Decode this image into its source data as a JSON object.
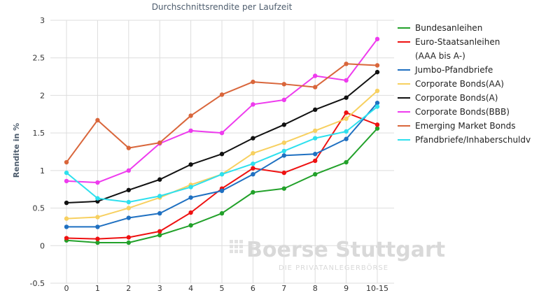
{
  "chart_data": {
    "type": "line",
    "title": "Durchschnittsrendite per Laufzeit",
    "ylabel": "Rendite in %",
    "xlabel": "",
    "categories": [
      "0",
      "1",
      "2",
      "3",
      "4",
      "5",
      "6",
      "7",
      "8",
      "9",
      "10-15"
    ],
    "ylim": [
      -0.5,
      3
    ],
    "yticks": [
      -0.5,
      0,
      0.5,
      1,
      1.5,
      2,
      2.5,
      3
    ],
    "grid": true,
    "legend_position": "right",
    "series": [
      {
        "name": "Bundesanleihen",
        "legend_lines": [
          "Bundesanleihen"
        ],
        "color": "#22a12a",
        "values": [
          0.07,
          0.04,
          0.04,
          0.14,
          0.27,
          0.43,
          0.71,
          0.76,
          0.95,
          1.11,
          1.56
        ]
      },
      {
        "name": "Euro-Staatsanleihen (AAA bis A-)",
        "legend_lines": [
          "Euro-Staatsanleihen",
          "(AAA bis A-)"
        ],
        "color": "#ee1111",
        "values": [
          0.1,
          0.09,
          0.11,
          0.19,
          0.44,
          0.76,
          1.03,
          0.97,
          1.13,
          1.77,
          1.61
        ]
      },
      {
        "name": "Jumbo-Pfandbriefe",
        "legend_lines": [
          "Jumbo-Pfandbriefe"
        ],
        "color": "#1f70c1",
        "values": [
          0.25,
          0.25,
          0.37,
          0.43,
          0.64,
          0.73,
          0.95,
          1.2,
          1.22,
          1.42,
          1.9
        ]
      },
      {
        "name": "Corporate Bonds(AA)",
        "legend_lines": [
          "Corporate Bonds(AA)"
        ],
        "color": "#f7d060",
        "values": [
          0.36,
          0.38,
          0.5,
          0.64,
          0.81,
          0.95,
          1.23,
          1.37,
          1.53,
          1.69,
          2.06
        ]
      },
      {
        "name": "Corporate Bonds(A)",
        "legend_lines": [
          "Corporate Bonds(A)"
        ],
        "color": "#111111",
        "values": [
          0.57,
          0.59,
          0.74,
          0.88,
          1.08,
          1.22,
          1.43,
          1.61,
          1.81,
          1.97,
          2.31
        ]
      },
      {
        "name": "Corporate Bonds(BBB)",
        "legend_lines": [
          "Corporate Bonds(BBB)"
        ],
        "color": "#ee3bee",
        "values": [
          0.86,
          0.84,
          1.0,
          1.36,
          1.53,
          1.5,
          1.88,
          1.94,
          2.26,
          2.2,
          2.75
        ]
      },
      {
        "name": "Emerging Market Bonds",
        "legend_lines": [
          "Emerging Market Bonds"
        ],
        "color": "#d9663b",
        "values": [
          1.11,
          1.67,
          1.3,
          1.37,
          1.73,
          2.01,
          2.18,
          2.15,
          2.11,
          2.42,
          2.4
        ]
      },
      {
        "name": "Pfandbriefe/Inhaberschuldv",
        "legend_lines": [
          "Pfandbriefe/Inhaberschuldv"
        ],
        "color": "#2ee0ee",
        "values": [
          0.97,
          0.63,
          0.58,
          0.66,
          0.78,
          0.95,
          1.09,
          1.26,
          1.43,
          1.52,
          1.85
        ]
      }
    ]
  },
  "watermark": {
    "main": "Boerse Stuttgart",
    "sub": "DIE PRIVATANLEGERBÖRSE"
  }
}
